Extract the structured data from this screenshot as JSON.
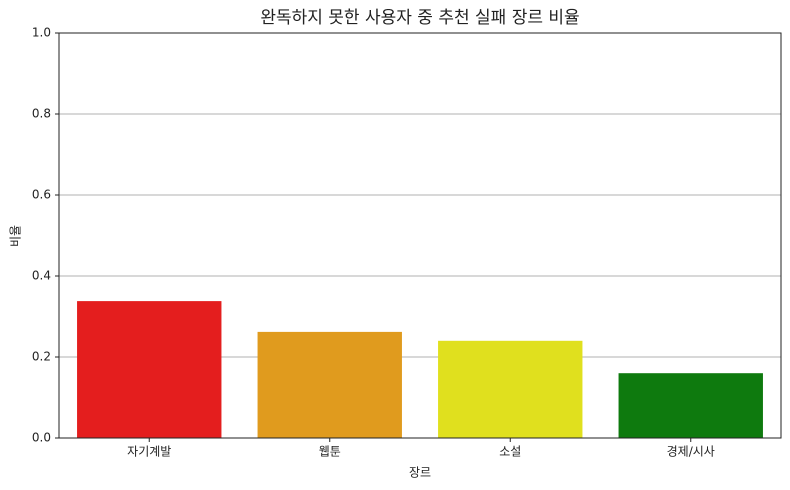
{
  "chart_data": {
    "type": "bar",
    "title": "완독하지 못한 사용자 중 추천 실패 장르 비율",
    "x_label": "장르",
    "y_label": "비율",
    "categories": [
      "자기계발",
      "웹툰",
      "소설",
      "경제/시사"
    ],
    "values": [
      0.338,
      0.262,
      0.24,
      0.16
    ],
    "colors": [
      "#e41e1e",
      "#e09b1e",
      "#e0e01e",
      "#0e7a0e"
    ],
    "ylim": [
      0,
      1
    ],
    "yticks": [
      {
        "value": 0,
        "label": "0.0"
      },
      0.2,
      0.4,
      0.6,
      0.8,
      {
        "value": 1,
        "label": "1.0"
      }
    ],
    "grid": true
  }
}
